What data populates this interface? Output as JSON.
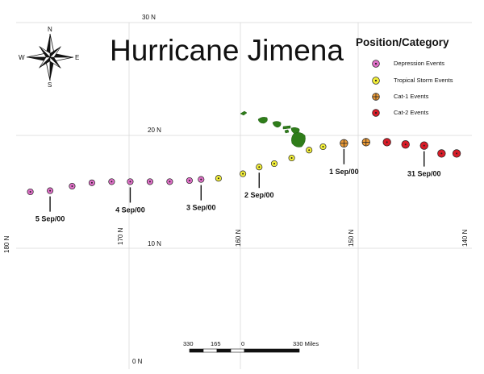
{
  "title": "Hurricane Jimena",
  "compass": {
    "n": "N",
    "s": "S",
    "e": "E",
    "w": "W"
  },
  "latitude_labels": [
    "30 N",
    "20 N",
    "10 N",
    "0 N"
  ],
  "longitude_labels": [
    "180 N",
    "170 N",
    "160 N",
    "150 N",
    "140 N"
  ],
  "legend": {
    "title": "Position/Category",
    "items": [
      {
        "label": "Depression Events",
        "fill": "#e070c8",
        "symbol": "dot"
      },
      {
        "label": "Tropical Storm Events",
        "fill": "#f2ee3a",
        "symbol": "dot"
      },
      {
        "label": "Cat-1 Events",
        "fill": "#eb9a36",
        "symbol": "cross"
      },
      {
        "label": "Cat-2 Events",
        "fill": "#d81c28",
        "symbol": "dot"
      }
    ]
  },
  "track": [
    {
      "lon": 178.5,
      "lat": 15.0,
      "cat": 0
    },
    {
      "lon": 176.8,
      "lat": 15.1,
      "cat": 0
    },
    {
      "lon": 174.9,
      "lat": 15.5,
      "cat": 0
    },
    {
      "lon": 173.2,
      "lat": 15.8,
      "cat": 0
    },
    {
      "lon": 171.5,
      "lat": 15.9,
      "cat": 0
    },
    {
      "lon": 169.9,
      "lat": 15.9,
      "cat": 0
    },
    {
      "lon": 168.2,
      "lat": 15.9,
      "cat": 0
    },
    {
      "lon": 166.5,
      "lat": 15.9,
      "cat": 0
    },
    {
      "lon": 164.8,
      "lat": 16.0,
      "cat": 0
    },
    {
      "lon": 163.8,
      "lat": 16.1,
      "cat": 0
    },
    {
      "lon": 162.3,
      "lat": 16.2,
      "cat": 1
    },
    {
      "lon": 160.2,
      "lat": 16.6,
      "cat": 1
    },
    {
      "lon": 158.8,
      "lat": 17.2,
      "cat": 1
    },
    {
      "lon": 157.5,
      "lat": 17.5,
      "cat": 1
    },
    {
      "lon": 156.0,
      "lat": 18.0,
      "cat": 1
    },
    {
      "lon": 154.5,
      "lat": 18.7,
      "cat": 1
    },
    {
      "lon": 153.3,
      "lat": 19.0,
      "cat": 1
    },
    {
      "lon": 151.5,
      "lat": 19.3,
      "cat": 2
    },
    {
      "lon": 149.6,
      "lat": 19.4,
      "cat": 2
    },
    {
      "lon": 147.8,
      "lat": 19.4,
      "cat": 3
    },
    {
      "lon": 146.2,
      "lat": 19.2,
      "cat": 3
    },
    {
      "lon": 144.6,
      "lat": 19.1,
      "cat": 3
    },
    {
      "lon": 143.1,
      "lat": 18.4,
      "cat": 3
    },
    {
      "lon": 141.8,
      "lat": 18.4,
      "cat": 3
    }
  ],
  "date_labels": [
    {
      "text": "5 Sep/00",
      "index": 1
    },
    {
      "text": "4 Sep/00",
      "index": 5
    },
    {
      "text": "3 Sep/00",
      "index": 9
    },
    {
      "text": "2 Sep/00",
      "index": 12
    },
    {
      "text": "1 Sep/00",
      "index": 17
    },
    {
      "text": "31 Sep/00",
      "index": 21
    }
  ],
  "scale_bar": {
    "labels": [
      "330",
      "165",
      "0",
      "330 Miles"
    ]
  }
}
